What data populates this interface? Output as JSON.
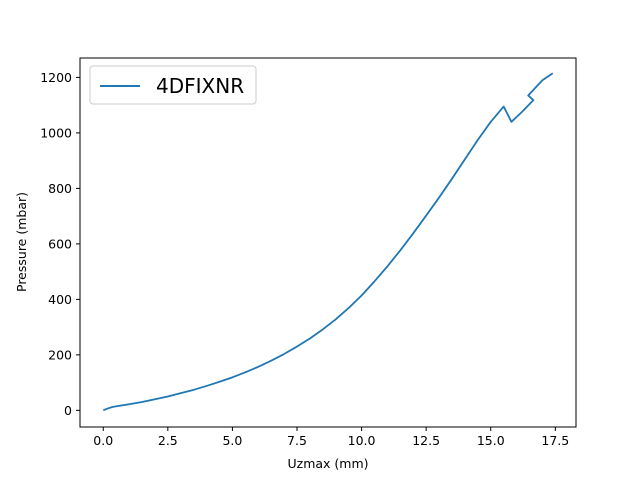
{
  "chart_data": {
    "type": "line",
    "title": "",
    "xlabel": "Uzmax (mm)",
    "ylabel": "Pressure (mbar)",
    "xlim": [
      -0.9,
      18.3
    ],
    "ylim": [
      -60,
      1270
    ],
    "xticks": [
      0.0,
      2.5,
      5.0,
      7.5,
      10.0,
      12.5,
      15.0,
      17.5
    ],
    "xtick_labels": [
      "0.0",
      "2.5",
      "5.0",
      "7.5",
      "10.0",
      "12.5",
      "15.0",
      "17.5"
    ],
    "yticks": [
      0,
      200,
      400,
      600,
      800,
      1000,
      1200
    ],
    "ytick_labels": [
      "0",
      "200",
      "400",
      "600",
      "800",
      "1000",
      "1200"
    ],
    "grid": false,
    "legend_position": "top-left",
    "series": [
      {
        "name": "4DFIXNR",
        "color": "#1f77b4",
        "x": [
          0.0,
          0.15,
          0.35,
          0.6,
          1.0,
          1.5,
          2.0,
          2.5,
          3.0,
          3.5,
          4.0,
          4.5,
          5.0,
          5.5,
          6.0,
          6.5,
          7.0,
          7.5,
          8.0,
          8.5,
          9.0,
          9.5,
          10.0,
          10.5,
          11.0,
          11.5,
          12.0,
          12.5,
          13.0,
          13.5,
          14.0,
          14.5,
          15.0,
          15.5,
          15.8,
          16.2,
          16.65,
          16.45,
          16.7,
          17.0,
          17.4
        ],
        "y": [
          0,
          6,
          12,
          16,
          22,
          30,
          40,
          50,
          62,
          74,
          88,
          103,
          119,
          137,
          157,
          179,
          203,
          230,
          259,
          292,
          328,
          369,
          414,
          465,
          519,
          577,
          638,
          702,
          767,
          835,
          905,
          975,
          1040,
          1095,
          1040,
          1075,
          1118,
          1135,
          1160,
          1190,
          1215
        ]
      }
    ]
  }
}
